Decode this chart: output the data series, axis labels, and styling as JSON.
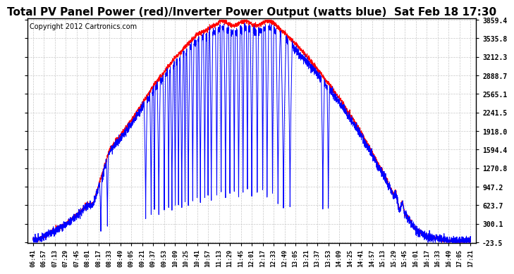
{
  "title": "Total PV Panel Power (red)/Inverter Power Output (watts blue)  Sat Feb 18 17:30",
  "copyright": "Copyright 2012 Cartronics.com",
  "ymin": -23.5,
  "ymax": 3859.4,
  "yticks": [
    3859.4,
    3535.8,
    3212.3,
    2888.7,
    2565.1,
    2241.5,
    1918.0,
    1594.4,
    1270.8,
    947.2,
    623.7,
    300.1,
    -23.5
  ],
  "xtick_labels": [
    "06:41",
    "06:57",
    "07:13",
    "07:29",
    "07:45",
    "08:01",
    "08:17",
    "08:33",
    "08:49",
    "09:05",
    "09:21",
    "09:37",
    "09:53",
    "10:09",
    "10:25",
    "10:41",
    "10:57",
    "11:13",
    "11:29",
    "11:45",
    "12:01",
    "12:17",
    "12:33",
    "12:49",
    "13:05",
    "13:21",
    "13:37",
    "13:53",
    "14:09",
    "14:25",
    "14:41",
    "14:57",
    "15:13",
    "15:29",
    "15:45",
    "16:01",
    "16:17",
    "16:33",
    "16:49",
    "17:05",
    "17:21"
  ],
  "bg_color": "#ffffff",
  "grid_color": "#c8c8c8",
  "red_color": "#ff0000",
  "blue_color": "#0000ff",
  "title_fontsize": 11,
  "copyright_fontsize": 7
}
